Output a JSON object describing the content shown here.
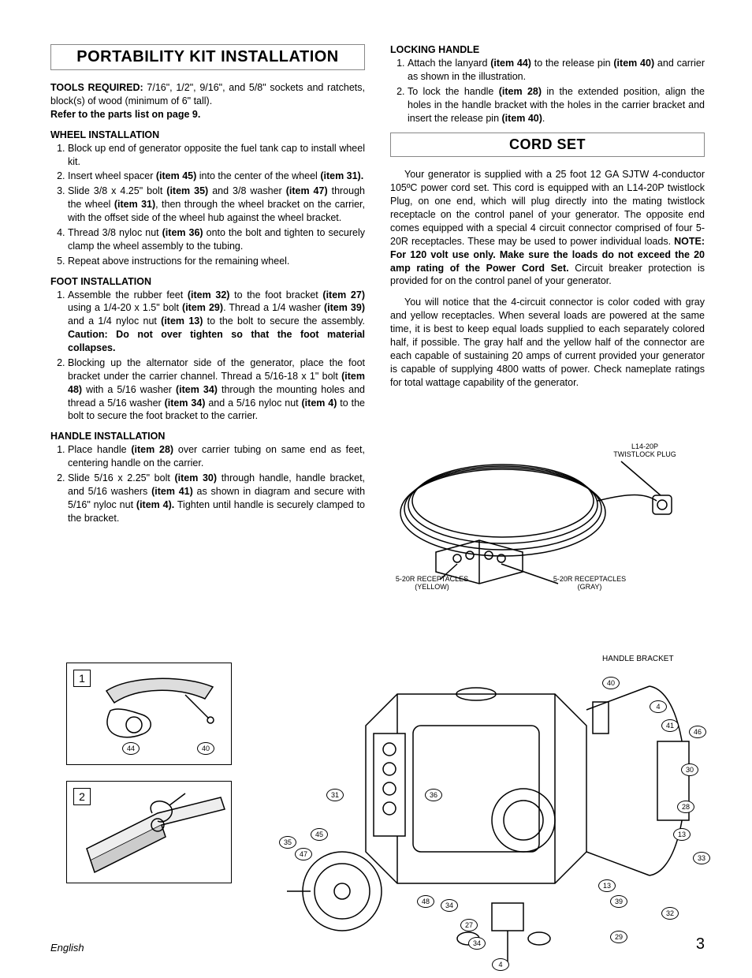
{
  "page": {
    "language_footer": "English",
    "page_number": "3"
  },
  "left": {
    "title": "PORTABILITY KIT INSTALLATION",
    "tools_label": "TOOLS REQUIRED:",
    "tools_text": "  7/16\", 1/2\", 9/16\", and 5/8\" sockets and ratchets, block(s) of wood (minimum of 6\" tall).",
    "tools_ref": "Refer to the parts list on page 9.",
    "wheel": {
      "heading": "WHEEL INSTALLATION",
      "items": [
        "Block up end of generator opposite the fuel tank cap to install wheel kit.",
        "Insert wheel spacer <b>(item 45)</b> into the center of the wheel <b>(item 31).</b>",
        "Slide 3/8 x 4.25\" bolt <b>(item 35)</b> and 3/8 washer <b>(item 47)</b> through the wheel <b>(item 31)</b>, then through the wheel bracket on the carrier, with the offset side of the wheel hub against the wheel bracket.",
        "Thread 3/8 nyloc nut <b>(item 36)</b> onto the bolt and tighten to securely clamp the wheel assembly to the tubing.",
        "Repeat above instructions for the remaining wheel."
      ]
    },
    "foot": {
      "heading": "FOOT INSTALLATION",
      "items": [
        "Assemble the rubber feet <b>(item 32)</b> to the foot bracket <b>(item 27)</b> using a 1/4-20 x 1.5\" bolt <b>(item 29)</b>.  Thread a 1/4 washer <b>(item 39)</b> and a 1/4 nyloc nut <b>(item 13)</b> to the bolt to secure the assembly.  <b>Caution: Do not over tighten so that the foot material collapses.</b>",
        "Blocking up the alternator side of the generator, place the foot bracket under the carrier channel.  Thread a 5/16-18 x 1\" bolt <b>(item 48)</b> with a 5/16 washer <b>(item 34)</b>  through the mounting holes and thread a 5/16 washer <b>(item 34)</b> and a 5/16 nyloc nut <b>(item 4)</b> to the bolt to secure the foot bracket to the carrier."
      ]
    },
    "handle": {
      "heading": "HANDLE INSTALLATION",
      "items": [
        "Place handle <b>(item 28)</b> over carrier tubing on same end as feet, centering handle on the carrier.",
        "Slide 5/16 x 2.25\" bolt <b>(item 30)</b> through handle, handle bracket, and 5/16 washers <b>(item 41)</b> as shown in diagram and secure with 5/16\" nyloc nut <b>(item 4).</b>  Tighten until handle is securely clamped to the bracket."
      ]
    }
  },
  "right": {
    "locking": {
      "heading": "LOCKING HANDLE",
      "items": [
        "Attach the lanyard <b>(item 44)</b> to the release pin <b>(item 40)</b> and carrier as shown in the illustration.",
        "To lock the handle <b>(item 28)</b> in the extended position, align the holes in the handle bracket with the holes in the carrier bracket and insert the release pin <b>(item 40)</b>."
      ]
    },
    "cordset": {
      "title": "CORD SET",
      "p1": "Your generator is supplied with a 25 foot 12 GA SJTW 4-conductor 105ºC power cord set.  This cord is equipped with an L14-20P twistlock Plug, on one end, which will plug directly into the mating twistlock receptacle on the control panel of your generator.  The opposite end comes equipped with a special 4 circuit connector comprised of four 5-20R receptacles.   These may be used to power individual loads.  ",
      "p1_bold": "NOTE: For 120 volt use only.  Make sure the loads do not exceed the 20 amp rating of the Power Cord Set.",
      "p1_tail": "  Circuit breaker protection is provided for on the control panel of your generator.",
      "p2": "You will notice that the 4-circuit connector is color coded with gray and yellow receptacles.  When several loads are powered at the same time, it is best to keep equal loads supplied to each separately colored half, if possible.  The gray half and the yellow half of the connector are each capable of sustaining 20 amps of current provided your generator is capable of supplying 4800 watts of power.  Check nameplate ratings for total wattage capability of the generator."
    }
  },
  "cord_figure": {
    "label_plug": "L14-20P\nTWISTLOCK PLUG",
    "label_yellow": "5-20R RECEPTACLES\n(YELLOW)",
    "label_gray": "5-20R RECEPTACLES\n(GRAY)"
  },
  "diagrams": {
    "fig1": {
      "num": "1",
      "c44": "44",
      "c40": "40"
    },
    "fig2": {
      "num": "2"
    },
    "main_labels": {
      "handle_bracket": "HANDLE BRACKET",
      "nums": [
        "40",
        "4",
        "41",
        "46",
        "30",
        "28",
        "13",
        "33",
        "13b",
        "39",
        "32",
        "29",
        "36",
        "31",
        "45",
        "35",
        "47",
        "48",
        "34",
        "27",
        "34b",
        "4b"
      ]
    },
    "callouts": {
      "c40": "40",
      "c4": "4",
      "c41": "41",
      "c46": "46",
      "c30": "30",
      "c28": "28",
      "c13": "13",
      "c33": "33",
      "c13b": "13",
      "c39": "39",
      "c32": "32",
      "c29": "29",
      "c36": "36",
      "c31": "31",
      "c45": "45",
      "c35": "35",
      "c47": "47",
      "c48": "48",
      "c34": "34",
      "c27": "27",
      "c34b": "34",
      "c4b": "4"
    }
  }
}
